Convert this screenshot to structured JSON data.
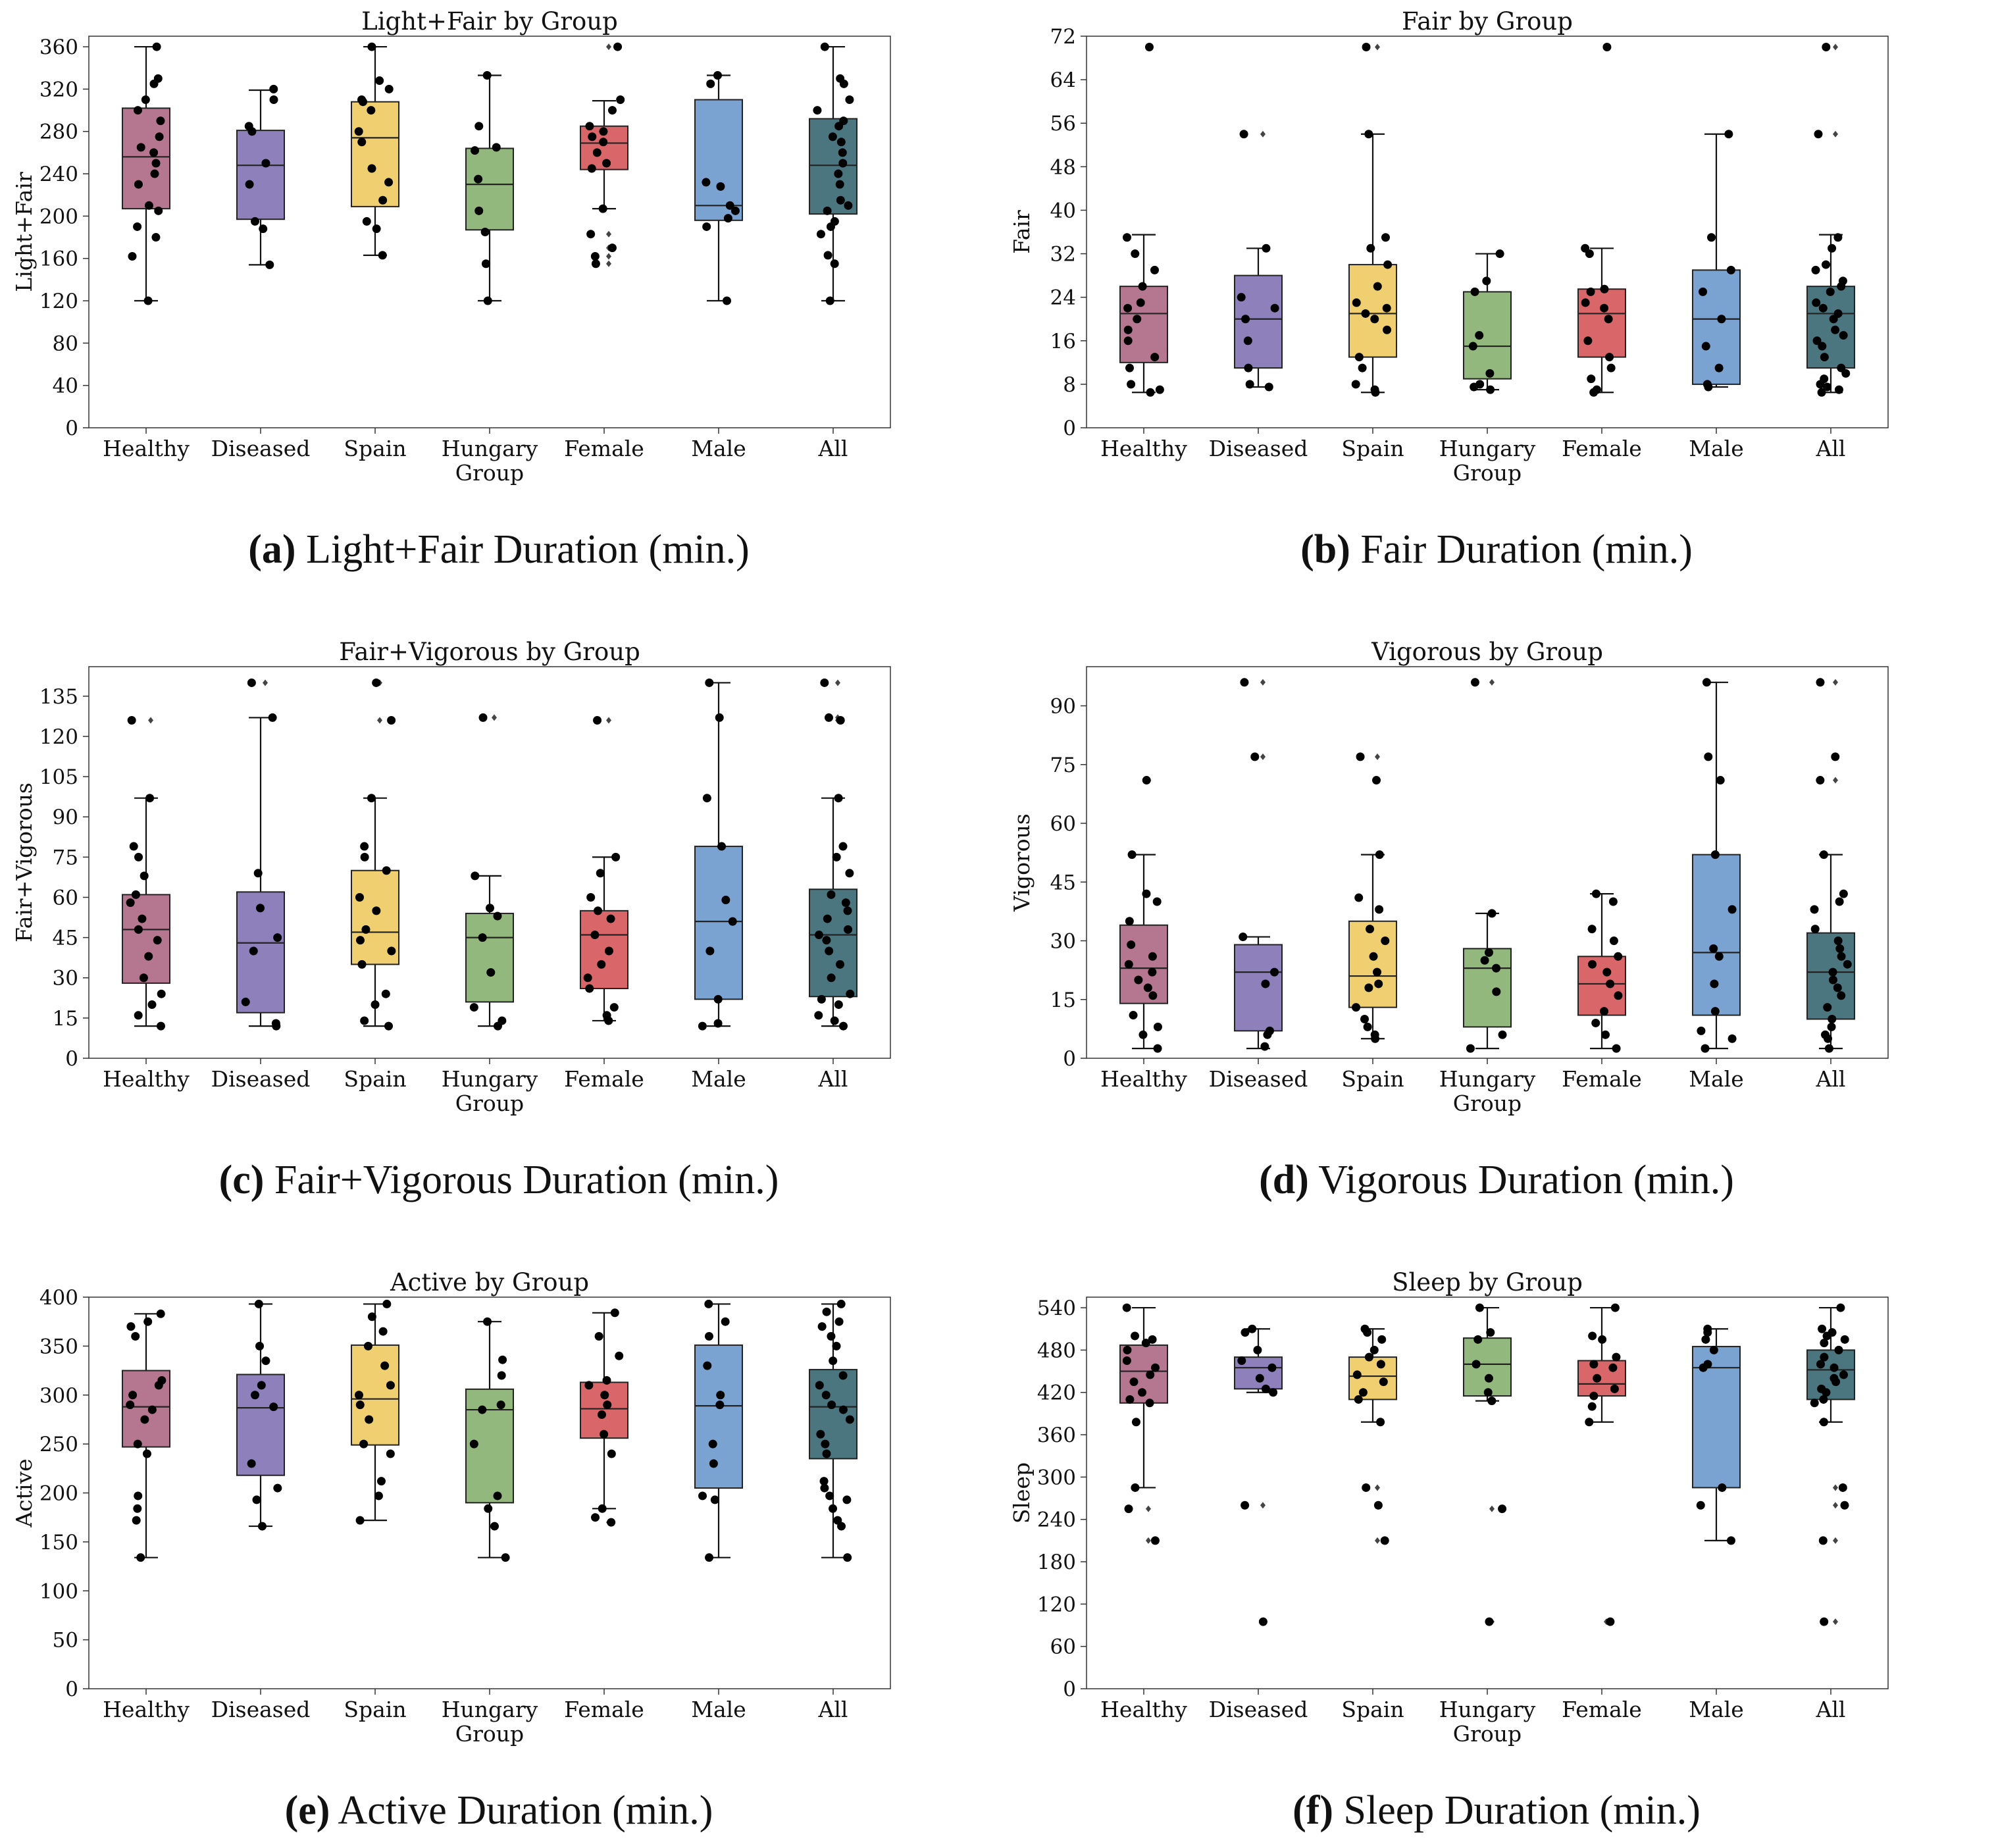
{
  "x_axis_label": "Group",
  "groups": [
    "Healthy",
    "Diseased",
    "Spain",
    "Hungary",
    "Female",
    "Male",
    "All"
  ],
  "colors": [
    "#b5768f",
    "#8e80bb",
    "#efcf6f",
    "#93b87d",
    "#d9676a",
    "#7aa3d1",
    "#4b7680"
  ],
  "chart_data": [
    {
      "type": "box",
      "title": "Light+Fair by Group",
      "ylabel": "Light+Fair",
      "caption_label": "(a)",
      "caption_text": "Light+Fair Duration (min.)",
      "ylim": [
        0,
        370
      ],
      "yticks": [
        0,
        40,
        80,
        120,
        160,
        200,
        240,
        280,
        320,
        360
      ],
      "boxes": [
        {
          "q1": 207,
          "median": 256,
          "q3": 302,
          "whislo": 120,
          "whishi": 360,
          "fliers": []
        },
        {
          "q1": 197,
          "median": 248,
          "q3": 281,
          "whislo": 154,
          "whishi": 319,
          "fliers": []
        },
        {
          "q1": 209,
          "median": 274,
          "q3": 308,
          "whislo": 163,
          "whishi": 360,
          "fliers": []
        },
        {
          "q1": 187,
          "median": 230,
          "q3": 264,
          "whislo": 120,
          "whishi": 333,
          "fliers": []
        },
        {
          "q1": 244,
          "median": 269,
          "q3": 285,
          "whislo": 207,
          "whishi": 309,
          "fliers": [
            360,
            183,
            170,
            162,
            155
          ]
        },
        {
          "q1": 196,
          "median": 210,
          "q3": 310,
          "whislo": 120,
          "whishi": 333,
          "fliers": []
        },
        {
          "q1": 202,
          "median": 248,
          "q3": 292,
          "whislo": 120,
          "whishi": 360,
          "fliers": []
        }
      ],
      "points": [
        [
          360,
          330,
          325,
          310,
          300,
          290,
          275,
          265,
          260,
          250,
          240,
          230,
          210,
          205,
          190,
          180,
          162,
          120
        ],
        [
          320,
          310,
          285,
          280,
          250,
          230,
          195,
          188,
          154
        ],
        [
          360,
          328,
          320,
          310,
          308,
          300,
          280,
          270,
          245,
          232,
          215,
          195,
          188,
          163
        ],
        [
          333,
          285,
          265,
          262,
          235,
          205,
          185,
          155,
          120
        ],
        [
          360,
          310,
          300,
          285,
          280,
          275,
          270,
          260,
          250,
          245,
          207,
          183,
          170,
          162,
          155
        ],
        [
          333,
          325,
          232,
          228,
          210,
          205,
          198,
          190,
          120
        ],
        [
          360,
          330,
          325,
          310,
          300,
          290,
          285,
          275,
          270,
          260,
          250,
          240,
          230,
          215,
          210,
          205,
          195,
          190,
          183,
          163,
          155,
          120
        ]
      ]
    },
    {
      "type": "box",
      "title": "Fair by Group",
      "ylabel": "Fair",
      "caption_label": "(b)",
      "caption_text": "Fair Duration (min.)",
      "ylim": [
        0,
        72
      ],
      "yticks": [
        0,
        8,
        16,
        24,
        32,
        40,
        48,
        56,
        64,
        72
      ],
      "boxes": [
        {
          "q1": 12,
          "median": 21,
          "q3": 26,
          "whislo": 6.5,
          "whishi": 35.5,
          "fliers": [
            70
          ]
        },
        {
          "q1": 11,
          "median": 20,
          "q3": 28,
          "whislo": 7.5,
          "whishi": 33,
          "fliers": [
            54
          ]
        },
        {
          "q1": 13,
          "median": 21,
          "q3": 30,
          "whislo": 6.5,
          "whishi": 54,
          "fliers": [
            70
          ]
        },
        {
          "q1": 9,
          "median": 15,
          "q3": 25,
          "whislo": 7,
          "whishi": 32,
          "fliers": []
        },
        {
          "q1": 13,
          "median": 21,
          "q3": 25.5,
          "whislo": 6.5,
          "whishi": 33,
          "fliers": [
            70
          ]
        },
        {
          "q1": 8,
          "median": 20,
          "q3": 29,
          "whislo": 7.5,
          "whishi": 54,
          "fliers": []
        },
        {
          "q1": 11,
          "median": 21,
          "q3": 26,
          "whislo": 6.5,
          "whishi": 35.5,
          "fliers": [
            70,
            54
          ]
        }
      ],
      "points": [
        [
          70,
          35,
          32,
          29,
          26,
          23,
          22,
          20,
          18,
          16,
          13,
          11,
          8,
          7,
          6.5
        ],
        [
          54,
          33,
          24,
          22,
          20,
          16,
          11,
          8,
          7.5
        ],
        [
          70,
          54,
          35,
          33,
          30,
          26,
          23,
          22,
          21,
          20,
          18,
          13,
          11,
          8,
          7,
          6.5
        ],
        [
          32,
          27,
          25,
          17,
          15,
          10,
          8,
          7.5,
          7
        ],
        [
          70,
          33,
          32,
          25.5,
          25,
          23,
          22,
          20,
          16,
          13,
          11,
          9,
          7,
          6.5
        ],
        [
          54,
          35,
          29,
          25,
          20,
          15,
          11,
          8,
          7.5
        ],
        [
          70,
          54,
          35,
          33,
          30,
          29,
          27,
          26,
          25,
          23,
          22,
          21,
          20,
          18,
          17,
          16,
          15,
          13,
          11,
          10,
          9,
          8,
          7.5,
          7,
          6.5
        ]
      ]
    },
    {
      "type": "box",
      "title": "Fair+Vigorous by Group",
      "ylabel": "Fair+Vigorous",
      "caption_label": "(c)",
      "caption_text": "Fair+Vigorous Duration (min.)",
      "ylim": [
        0,
        146
      ],
      "yticks": [
        0,
        15,
        30,
        45,
        60,
        75,
        90,
        105,
        120,
        135
      ],
      "boxes": [
        {
          "q1": 28,
          "median": 48,
          "q3": 61,
          "whislo": 12,
          "whishi": 97,
          "fliers": [
            126
          ]
        },
        {
          "q1": 17,
          "median": 43,
          "q3": 62,
          "whislo": 12,
          "whishi": 127,
          "fliers": [
            140
          ]
        },
        {
          "q1": 35,
          "median": 47,
          "q3": 70,
          "whislo": 12,
          "whishi": 97,
          "fliers": [
            140,
            126
          ]
        },
        {
          "q1": 21,
          "median": 45,
          "q3": 54,
          "whislo": 12,
          "whishi": 68,
          "fliers": [
            127
          ]
        },
        {
          "q1": 26,
          "median": 46,
          "q3": 55,
          "whislo": 14,
          "whishi": 75,
          "fliers": [
            126
          ]
        },
        {
          "q1": 22,
          "median": 51,
          "q3": 79,
          "whislo": 12,
          "whishi": 140,
          "fliers": []
        },
        {
          "q1": 23,
          "median": 46,
          "q3": 63,
          "whislo": 12,
          "whishi": 97,
          "fliers": [
            140,
            127,
            126
          ]
        }
      ],
      "points": [
        [
          126,
          97,
          79,
          75,
          68,
          61,
          58,
          52,
          48,
          44,
          38,
          30,
          24,
          20,
          16,
          12
        ],
        [
          140,
          127,
          69,
          56,
          45,
          40,
          21,
          13,
          12
        ],
        [
          140,
          126,
          97,
          79,
          75,
          70,
          60,
          55,
          48,
          44,
          40,
          35,
          24,
          20,
          14,
          12
        ],
        [
          127,
          68,
          56,
          53,
          45,
          32,
          19,
          14,
          12
        ],
        [
          126,
          75,
          69,
          60,
          55,
          52,
          46,
          40,
          35,
          30,
          26,
          19,
          16,
          14
        ],
        [
          140,
          127,
          97,
          79,
          59,
          51,
          40,
          22,
          13,
          12
        ],
        [
          140,
          127,
          126,
          97,
          79,
          75,
          69,
          61,
          58,
          55,
          52,
          48,
          46,
          44,
          40,
          35,
          30,
          24,
          22,
          20,
          16,
          14,
          12
        ]
      ]
    },
    {
      "type": "box",
      "title": "Vigorous by Group",
      "ylabel": "Vigorous",
      "caption_label": "(d)",
      "caption_text": "Vigorous Duration (min.)",
      "ylim": [
        0,
        100
      ],
      "yticks": [
        0,
        15,
        30,
        45,
        60,
        75,
        90
      ],
      "boxes": [
        {
          "q1": 14,
          "median": 23,
          "q3": 34,
          "whislo": 2.5,
          "whishi": 52,
          "fliers": [
            71
          ]
        },
        {
          "q1": 7,
          "median": 22,
          "q3": 29,
          "whislo": 2.5,
          "whishi": 31,
          "fliers": [
            96,
            77
          ]
        },
        {
          "q1": 13,
          "median": 21,
          "q3": 35,
          "whislo": 5,
          "whishi": 52,
          "fliers": [
            77,
            71
          ]
        },
        {
          "q1": 8,
          "median": 23,
          "q3": 28,
          "whislo": 2.5,
          "whishi": 37,
          "fliers": [
            96
          ]
        },
        {
          "q1": 11,
          "median": 19,
          "q3": 26,
          "whislo": 2.5,
          "whishi": 42,
          "fliers": []
        },
        {
          "q1": 11,
          "median": 27,
          "q3": 52,
          "whislo": 2.5,
          "whishi": 96,
          "fliers": []
        },
        {
          "q1": 10,
          "median": 22,
          "q3": 32,
          "whislo": 2.5,
          "whishi": 52,
          "fliers": [
            96,
            77,
            71
          ]
        }
      ],
      "points": [
        [
          71,
          52,
          42,
          40,
          35,
          29,
          26,
          24,
          22,
          20,
          18,
          16,
          11,
          8,
          6,
          2.5
        ],
        [
          96,
          77,
          31,
          22,
          19,
          7,
          6,
          3
        ],
        [
          77,
          71,
          52,
          41,
          38,
          33,
          30,
          26,
          22,
          19,
          18,
          13,
          10,
          8,
          6,
          5
        ],
        [
          96,
          37,
          27,
          25,
          23,
          17,
          6,
          2.5
        ],
        [
          42,
          40,
          33,
          30,
          26,
          24,
          22,
          19,
          16,
          12,
          9,
          6,
          2.5
        ],
        [
          96,
          77,
          71,
          52,
          38,
          28,
          26,
          19,
          12,
          7,
          5,
          2.5
        ],
        [
          96,
          77,
          71,
          52,
          42,
          40,
          38,
          33,
          30,
          28,
          26,
          24,
          22,
          20,
          18,
          16,
          13,
          10,
          8,
          6,
          5,
          2.5
        ]
      ]
    },
    {
      "type": "box",
      "title": "Active by Group",
      "ylabel": "Active",
      "caption_label": "(e)",
      "caption_text": "Active Duration (min.)",
      "ylim": [
        0,
        400
      ],
      "yticks": [
        0,
        50,
        100,
        150,
        200,
        250,
        300,
        350,
        400
      ],
      "boxes": [
        {
          "q1": 247,
          "median": 288,
          "q3": 325,
          "whislo": 134,
          "whishi": 383,
          "fliers": []
        },
        {
          "q1": 218,
          "median": 287,
          "q3": 321,
          "whislo": 166,
          "whishi": 393,
          "fliers": []
        },
        {
          "q1": 249,
          "median": 296,
          "q3": 351,
          "whislo": 172,
          "whishi": 393,
          "fliers": []
        },
        {
          "q1": 190,
          "median": 285,
          "q3": 306,
          "whislo": 134,
          "whishi": 375,
          "fliers": []
        },
        {
          "q1": 256,
          "median": 286,
          "q3": 313,
          "whislo": 184,
          "whishi": 384,
          "fliers": [
            170
          ]
        },
        {
          "q1": 205,
          "median": 289,
          "q3": 351,
          "whislo": 134,
          "whishi": 393,
          "fliers": []
        },
        {
          "q1": 235,
          "median": 288,
          "q3": 326,
          "whislo": 134,
          "whishi": 393,
          "fliers": []
        }
      ],
      "points": [
        [
          383,
          375,
          370,
          360,
          315,
          310,
          300,
          290,
          285,
          275,
          250,
          240,
          197,
          184,
          172,
          134
        ],
        [
          393,
          350,
          335,
          310,
          300,
          288,
          230,
          205,
          193,
          166
        ],
        [
          393,
          380,
          365,
          350,
          330,
          310,
          300,
          290,
          275,
          250,
          240,
          212,
          197,
          172
        ],
        [
          375,
          336,
          320,
          290,
          285,
          250,
          197,
          184,
          166,
          134
        ],
        [
          384,
          360,
          340,
          315,
          310,
          300,
          290,
          280,
          260,
          240,
          184,
          175,
          170
        ],
        [
          393,
          375,
          360,
          330,
          300,
          290,
          250,
          230,
          197,
          193,
          134
        ],
        [
          393,
          385,
          375,
          370,
          360,
          350,
          335,
          320,
          310,
          300,
          290,
          285,
          275,
          260,
          250,
          240,
          212,
          205,
          197,
          193,
          184,
          172,
          166,
          134
        ]
      ]
    },
    {
      "type": "box",
      "title": "Sleep by Group",
      "ylabel": "Sleep",
      "caption_label": "(f)",
      "caption_text": "Sleep Duration (min.)",
      "ylim": [
        0,
        555
      ],
      "yticks": [
        0,
        60,
        120,
        180,
        240,
        300,
        360,
        420,
        480,
        540
      ],
      "boxes": [
        {
          "q1": 405,
          "median": 450,
          "q3": 487,
          "whislo": 285,
          "whishi": 540,
          "fliers": [
            255,
            210
          ]
        },
        {
          "q1": 425,
          "median": 455,
          "q3": 470,
          "whislo": 420,
          "whishi": 510,
          "fliers": [
            260,
            95
          ]
        },
        {
          "q1": 410,
          "median": 443,
          "q3": 470,
          "whislo": 378,
          "whishi": 510,
          "fliers": [
            285,
            260,
            210
          ]
        },
        {
          "q1": 415,
          "median": 460,
          "q3": 497,
          "whislo": 408,
          "whishi": 540,
          "fliers": [
            255,
            95
          ]
        },
        {
          "q1": 415,
          "median": 432,
          "q3": 465,
          "whislo": 378,
          "whishi": 540,
          "fliers": [
            95
          ]
        },
        {
          "q1": 285,
          "median": 455,
          "q3": 485,
          "whislo": 210,
          "whishi": 510,
          "fliers": []
        },
        {
          "q1": 410,
          "median": 452,
          "q3": 480,
          "whislo": 378,
          "whishi": 540,
          "fliers": [
            285,
            260,
            210,
            95
          ]
        }
      ],
      "points": [
        [
          540,
          500,
          495,
          490,
          480,
          465,
          455,
          445,
          435,
          420,
          410,
          405,
          378,
          285,
          255,
          210
        ],
        [
          510,
          505,
          480,
          465,
          455,
          440,
          425,
          420,
          260,
          95
        ],
        [
          510,
          505,
          495,
          480,
          470,
          460,
          445,
          435,
          420,
          410,
          378,
          285,
          260,
          210
        ],
        [
          540,
          505,
          495,
          460,
          440,
          420,
          408,
          255,
          95
        ],
        [
          540,
          500,
          495,
          470,
          460,
          455,
          440,
          425,
          415,
          400,
          378,
          95
        ],
        [
          510,
          505,
          495,
          480,
          460,
          455,
          285,
          260,
          210
        ],
        [
          540,
          510,
          505,
          500,
          495,
          490,
          480,
          470,
          460,
          455,
          445,
          440,
          435,
          425,
          420,
          410,
          405,
          378,
          285,
          260,
          210,
          95
        ]
      ]
    }
  ]
}
